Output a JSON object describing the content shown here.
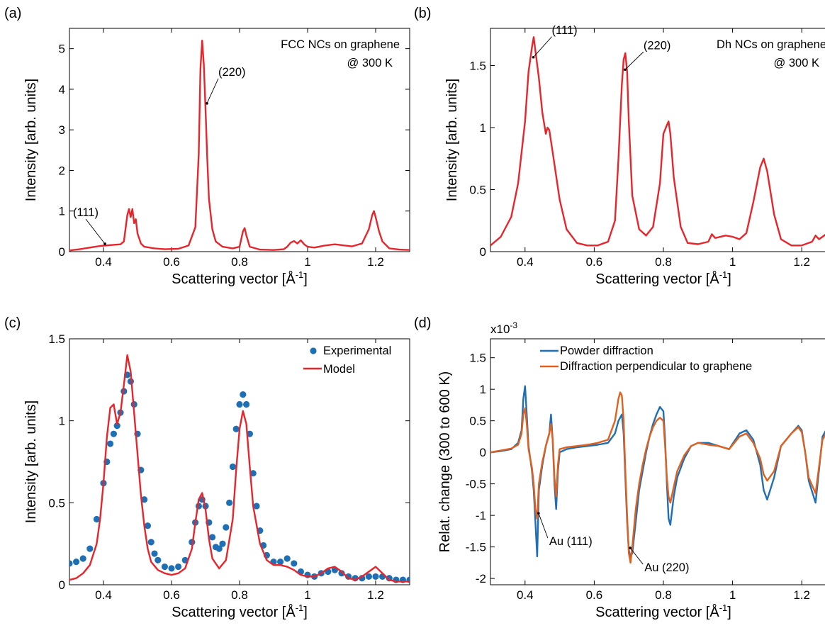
{
  "chart_data": [
    {
      "panel": "(a)",
      "type": "line",
      "xlabel": "Scattering vector [Å",
      "xlabel_sup": "-1",
      "xlabel_end": "]",
      "ylabel": "Intensity [arb. units]",
      "xlim": [
        0.3,
        1.3
      ],
      "ylim": [
        0,
        5.5
      ],
      "xticks": [
        0.4,
        0.6,
        0.8,
        1.0,
        1.2
      ],
      "xtick_labels": [
        "0.4",
        "0.6",
        "0.8",
        "1",
        "1.2"
      ],
      "yticks": [
        0,
        1,
        2,
        3,
        4,
        5
      ],
      "ytick_labels": [
        "0",
        "1",
        "2",
        "3",
        "4",
        "5"
      ],
      "annotations": [
        "FCC NCs on graphene",
        "@ 300 K"
      ],
      "series": [
        {
          "color": "#e8252b",
          "x": [
            0.3,
            0.33,
            0.36,
            0.39,
            0.42,
            0.45,
            0.46,
            0.47,
            0.475,
            0.48,
            0.485,
            0.49,
            0.495,
            0.5,
            0.51,
            0.52,
            0.55,
            0.58,
            0.62,
            0.65,
            0.67,
            0.68,
            0.685,
            0.69,
            0.695,
            0.7,
            0.705,
            0.71,
            0.72,
            0.73,
            0.75,
            0.78,
            0.8,
            0.81,
            0.815,
            0.82,
            0.83,
            0.86,
            0.9,
            0.93,
            0.94,
            0.95,
            0.96,
            0.97,
            0.98,
            0.99,
            1.0,
            1.02,
            1.05,
            1.08,
            1.1,
            1.13,
            1.16,
            1.18,
            1.19,
            1.195,
            1.2,
            1.21,
            1.22,
            1.24,
            1.27,
            1.3
          ],
          "y": [
            0.03,
            0.06,
            0.1,
            0.14,
            0.16,
            0.18,
            0.25,
            0.9,
            1.05,
            0.85,
            1.05,
            0.7,
            0.8,
            0.45,
            0.2,
            0.12,
            0.08,
            0.06,
            0.07,
            0.15,
            0.6,
            2.4,
            4.5,
            5.2,
            4.6,
            3.5,
            2.3,
            1.3,
            0.55,
            0.25,
            0.12,
            0.08,
            0.12,
            0.5,
            0.58,
            0.4,
            0.12,
            0.05,
            0.04,
            0.06,
            0.12,
            0.22,
            0.26,
            0.2,
            0.28,
            0.18,
            0.12,
            0.1,
            0.15,
            0.18,
            0.16,
            0.13,
            0.2,
            0.55,
            0.9,
            1.0,
            0.85,
            0.5,
            0.25,
            0.08,
            0.05,
            0.04
          ]
        }
      ],
      "peak_labels": [
        {
          "text": "(111)",
          "x": 0.4,
          "y": 0.14
        },
        {
          "text": "(220)",
          "x": 0.7,
          "y": 3.6
        }
      ]
    },
    {
      "panel": "(b)",
      "type": "line",
      "xlabel": "Scattering vector [Å",
      "xlabel_sup": "-1",
      "xlabel_end": "]",
      "ylabel": "Intensity [arb. units]",
      "xlim": [
        0.3,
        1.3
      ],
      "ylim": [
        0,
        1.8
      ],
      "xticks": [
        0.4,
        0.6,
        0.8,
        1.0,
        1.2
      ],
      "xtick_labels": [
        "0.4",
        "0.6",
        "0.8",
        "1",
        "1.2"
      ],
      "yticks": [
        0,
        0.5,
        1.0,
        1.5
      ],
      "ytick_labels": [
        "0",
        "0.5",
        "1",
        "1.5"
      ],
      "annotations": [
        "Dh NCs on graphene",
        "@ 300 K"
      ],
      "series": [
        {
          "color": "#e8252b",
          "x": [
            0.3,
            0.33,
            0.36,
            0.38,
            0.4,
            0.41,
            0.42,
            0.425,
            0.43,
            0.44,
            0.45,
            0.46,
            0.465,
            0.47,
            0.48,
            0.5,
            0.52,
            0.55,
            0.58,
            0.61,
            0.64,
            0.66,
            0.67,
            0.68,
            0.685,
            0.69,
            0.695,
            0.7,
            0.71,
            0.73,
            0.75,
            0.77,
            0.79,
            0.8,
            0.81,
            0.815,
            0.82,
            0.83,
            0.85,
            0.87,
            0.9,
            0.93,
            0.94,
            0.95,
            0.98,
            1.0,
            1.02,
            1.04,
            1.06,
            1.08,
            1.09,
            1.1,
            1.12,
            1.14,
            1.17,
            1.2,
            1.23,
            1.24,
            1.25,
            1.27,
            1.3
          ],
          "y": [
            0.05,
            0.12,
            0.28,
            0.55,
            1.05,
            1.45,
            1.65,
            1.73,
            1.62,
            1.4,
            1.12,
            0.95,
            1.0,
            0.98,
            0.8,
            0.42,
            0.18,
            0.07,
            0.05,
            0.05,
            0.08,
            0.25,
            0.75,
            1.35,
            1.55,
            1.6,
            1.45,
            1.05,
            0.45,
            0.18,
            0.13,
            0.2,
            0.55,
            0.95,
            1.02,
            1.05,
            0.95,
            0.6,
            0.2,
            0.07,
            0.06,
            0.08,
            0.14,
            0.11,
            0.13,
            0.12,
            0.1,
            0.15,
            0.4,
            0.68,
            0.75,
            0.65,
            0.3,
            0.1,
            0.05,
            0.05,
            0.08,
            0.13,
            0.1,
            0.14,
            0.14
          ]
        }
      ],
      "peak_labels": [
        {
          "text": "(111)",
          "x": 0.42,
          "y": 1.55
        },
        {
          "text": "(220)",
          "x": 0.685,
          "y": 1.45
        }
      ]
    },
    {
      "panel": "(c)",
      "type": "line",
      "xlabel": "Scattering vector [Å",
      "xlabel_sup": "-1",
      "xlabel_end": "]",
      "ylabel": "Intensity [arb. units]",
      "xlim": [
        0.3,
        1.3
      ],
      "ylim": [
        0,
        1.5
      ],
      "xticks": [
        0.4,
        0.6,
        0.8,
        1.0,
        1.2
      ],
      "xtick_labels": [
        "0.4",
        "0.6",
        "0.8",
        "1",
        "1.2"
      ],
      "yticks": [
        0,
        0.5,
        1.0,
        1.5
      ],
      "ytick_labels": [
        "0",
        "0.5",
        "1",
        "1.5"
      ],
      "legend": {
        "position": "top-right",
        "entries": [
          "Experimental",
          "Model"
        ]
      },
      "series": [
        {
          "name": "Experimental",
          "style": "scatter",
          "color": "#1f6fb5",
          "x": [
            0.3,
            0.32,
            0.34,
            0.36,
            0.38,
            0.4,
            0.41,
            0.42,
            0.43,
            0.44,
            0.45,
            0.46,
            0.47,
            0.48,
            0.49,
            0.5,
            0.51,
            0.52,
            0.53,
            0.54,
            0.55,
            0.56,
            0.58,
            0.6,
            0.62,
            0.64,
            0.66,
            0.67,
            0.68,
            0.69,
            0.7,
            0.71,
            0.72,
            0.73,
            0.74,
            0.75,
            0.76,
            0.77,
            0.78,
            0.79,
            0.8,
            0.81,
            0.82,
            0.83,
            0.84,
            0.85,
            0.86,
            0.87,
            0.88,
            0.9,
            0.92,
            0.94,
            0.96,
            0.98,
            1.0,
            1.02,
            1.04,
            1.06,
            1.08,
            1.1,
            1.12,
            1.14,
            1.16,
            1.18,
            1.2,
            1.22,
            1.24,
            1.26,
            1.28,
            1.3
          ],
          "y": [
            0.13,
            0.14,
            0.16,
            0.22,
            0.4,
            0.62,
            0.75,
            0.86,
            0.92,
            0.97,
            1.05,
            1.18,
            1.28,
            1.24,
            1.1,
            0.92,
            0.7,
            0.52,
            0.36,
            0.26,
            0.19,
            0.15,
            0.11,
            0.1,
            0.11,
            0.15,
            0.26,
            0.38,
            0.48,
            0.52,
            0.48,
            0.38,
            0.29,
            0.23,
            0.22,
            0.25,
            0.35,
            0.5,
            0.72,
            0.95,
            1.1,
            1.16,
            1.1,
            0.92,
            0.68,
            0.48,
            0.33,
            0.24,
            0.18,
            0.14,
            0.14,
            0.16,
            0.13,
            0.08,
            0.06,
            0.05,
            0.07,
            0.08,
            0.09,
            0.07,
            0.05,
            0.04,
            0.04,
            0.05,
            0.05,
            0.05,
            0.04,
            0.03,
            0.03,
            0.03
          ]
        },
        {
          "name": "Model",
          "style": "line",
          "color": "#e8252b",
          "x": [
            0.3,
            0.32,
            0.34,
            0.36,
            0.38,
            0.39,
            0.4,
            0.41,
            0.42,
            0.43,
            0.44,
            0.45,
            0.46,
            0.47,
            0.48,
            0.49,
            0.5,
            0.51,
            0.52,
            0.53,
            0.54,
            0.56,
            0.58,
            0.6,
            0.62,
            0.64,
            0.66,
            0.67,
            0.68,
            0.69,
            0.7,
            0.71,
            0.72,
            0.74,
            0.76,
            0.78,
            0.79,
            0.8,
            0.81,
            0.82,
            0.83,
            0.84,
            0.86,
            0.88,
            0.9,
            0.92,
            0.94,
            0.96,
            0.98,
            1.0,
            1.02,
            1.04,
            1.06,
            1.08,
            1.1,
            1.12,
            1.14,
            1.16,
            1.18,
            1.2,
            1.22,
            1.24,
            1.26,
            1.28,
            1.3
          ],
          "y": [
            0.03,
            0.04,
            0.07,
            0.12,
            0.25,
            0.4,
            0.62,
            0.9,
            1.08,
            1.1,
            0.98,
            1.05,
            1.22,
            1.4,
            1.3,
            1.05,
            0.8,
            0.55,
            0.36,
            0.22,
            0.14,
            0.09,
            0.07,
            0.06,
            0.07,
            0.1,
            0.22,
            0.38,
            0.52,
            0.56,
            0.46,
            0.28,
            0.16,
            0.1,
            0.15,
            0.4,
            0.7,
            0.95,
            1.06,
            0.98,
            0.72,
            0.48,
            0.25,
            0.15,
            0.12,
            0.12,
            0.11,
            0.09,
            0.06,
            0.05,
            0.05,
            0.07,
            0.1,
            0.11,
            0.08,
            0.04,
            0.03,
            0.05,
            0.08,
            0.11,
            0.07,
            0.03,
            0.02,
            0.02,
            0.02
          ]
        }
      ]
    },
    {
      "panel": "(d)",
      "type": "line",
      "xlabel": "Scattering vector [Å",
      "xlabel_sup": "-1",
      "xlabel_end": "]",
      "ylabel": "Relat. change (300 to 600 K)",
      "multiplier": "x10",
      "multiplier_sup": "-3",
      "xlim": [
        0.3,
        1.3
      ],
      "ylim": [
        -2.1,
        1.8
      ],
      "xticks": [
        0.4,
        0.6,
        0.8,
        1.0,
        1.2
      ],
      "xtick_labels": [
        "0.4",
        "0.6",
        "0.8",
        "1",
        "1.2"
      ],
      "yticks": [
        -2,
        -1.5,
        -1,
        -0.5,
        0,
        0.5,
        1,
        1.5
      ],
      "ytick_labels": [
        "-2",
        "-1.5",
        "-1",
        "-0.5",
        "0",
        "0.5",
        "1",
        "1.5"
      ],
      "legend": {
        "position": "top",
        "entries": [
          "Powder diffraction",
          "Diffraction perpendicular to graphene"
        ]
      },
      "series": [
        {
          "name": "Powder diffraction",
          "color": "#1f6fb5",
          "x": [
            0.3,
            0.33,
            0.36,
            0.38,
            0.39,
            0.395,
            0.4,
            0.405,
            0.41,
            0.42,
            0.425,
            0.43,
            0.435,
            0.44,
            0.45,
            0.46,
            0.47,
            0.475,
            0.48,
            0.485,
            0.49,
            0.495,
            0.5,
            0.52,
            0.55,
            0.58,
            0.61,
            0.64,
            0.66,
            0.67,
            0.68,
            0.685,
            0.69,
            0.695,
            0.7,
            0.705,
            0.71,
            0.72,
            0.73,
            0.74,
            0.75,
            0.76,
            0.77,
            0.78,
            0.79,
            0.8,
            0.805,
            0.81,
            0.815,
            0.82,
            0.83,
            0.84,
            0.86,
            0.88,
            0.9,
            0.93,
            0.96,
            0.99,
            1.02,
            1.04,
            1.06,
            1.08,
            1.09,
            1.1,
            1.12,
            1.14,
            1.17,
            1.19,
            1.2,
            1.21,
            1.22,
            1.24,
            1.26,
            1.27,
            1.28,
            1.29,
            1.3
          ],
          "y": [
            0.0,
            0.02,
            0.05,
            0.15,
            0.35,
            0.85,
            1.05,
            0.6,
            0.1,
            -0.3,
            -0.6,
            -1.1,
            -1.65,
            -0.6,
            -0.2,
            0.1,
            0.3,
            0.6,
            0.2,
            -0.5,
            -0.9,
            -0.3,
            0.0,
            0.05,
            0.08,
            0.1,
            0.12,
            0.15,
            0.3,
            0.5,
            0.6,
            0.3,
            -0.4,
            -1.1,
            -1.55,
            -1.65,
            -1.6,
            -1.1,
            -0.6,
            -0.3,
            0.0,
            0.25,
            0.45,
            0.6,
            0.72,
            0.65,
            0.2,
            -0.5,
            -1.05,
            -1.15,
            -0.7,
            -0.4,
            -0.1,
            0.1,
            0.15,
            0.15,
            0.1,
            0.05,
            0.3,
            0.35,
            0.2,
            -0.2,
            -0.6,
            -0.75,
            -0.4,
            0.1,
            0.3,
            0.42,
            0.35,
            0.0,
            -0.45,
            -0.8,
            0.25,
            0.35,
            -0.2,
            -0.65,
            -0.45
          ]
        },
        {
          "name": "Diffraction perpendicular to graphene",
          "color": "#e0601e",
          "x": [
            0.3,
            0.33,
            0.36,
            0.38,
            0.39,
            0.395,
            0.4,
            0.405,
            0.41,
            0.42,
            0.425,
            0.43,
            0.435,
            0.44,
            0.45,
            0.46,
            0.47,
            0.475,
            0.48,
            0.485,
            0.49,
            0.495,
            0.5,
            0.52,
            0.55,
            0.58,
            0.61,
            0.64,
            0.66,
            0.67,
            0.675,
            0.68,
            0.685,
            0.69,
            0.695,
            0.7,
            0.705,
            0.71,
            0.72,
            0.73,
            0.74,
            0.75,
            0.76,
            0.77,
            0.78,
            0.79,
            0.8,
            0.805,
            0.81,
            0.815,
            0.82,
            0.83,
            0.84,
            0.86,
            0.88,
            0.9,
            0.93,
            0.96,
            0.99,
            1.02,
            1.04,
            1.06,
            1.08,
            1.09,
            1.1,
            1.12,
            1.14,
            1.17,
            1.19,
            1.2,
            1.21,
            1.22,
            1.24,
            1.26,
            1.27,
            1.28,
            1.29,
            1.3
          ],
          "y": [
            0.0,
            0.03,
            0.06,
            0.12,
            0.3,
            0.6,
            0.7,
            0.45,
            0.05,
            -0.25,
            -0.5,
            -0.9,
            -1.05,
            -0.5,
            -0.15,
            0.1,
            0.3,
            0.45,
            0.2,
            -0.4,
            -0.7,
            -0.2,
            0.05,
            0.08,
            0.1,
            0.12,
            0.15,
            0.2,
            0.5,
            0.85,
            0.95,
            0.9,
            0.5,
            -0.3,
            -1.0,
            -1.6,
            -1.75,
            -1.5,
            -0.9,
            -0.5,
            -0.2,
            0.05,
            0.25,
            0.4,
            0.5,
            0.55,
            0.5,
            0.1,
            -0.4,
            -0.7,
            -0.8,
            -0.55,
            -0.3,
            -0.05,
            0.1,
            0.15,
            0.12,
            0.1,
            0.05,
            0.25,
            0.3,
            0.15,
            -0.1,
            -0.35,
            -0.45,
            -0.3,
            0.1,
            0.3,
            0.4,
            0.32,
            0.0,
            -0.4,
            -0.65,
            0.2,
            0.3,
            -0.15,
            -0.4,
            -0.25
          ]
        }
      ],
      "peak_labels": [
        {
          "text": "Au (111)",
          "x": 0.435,
          "y": -1.0
        },
        {
          "text": "Au (220)",
          "x": 0.7,
          "y": -1.55
        }
      ]
    }
  ],
  "panel_letters": [
    "(a)",
    "(b)",
    "(c)",
    "(d)"
  ]
}
